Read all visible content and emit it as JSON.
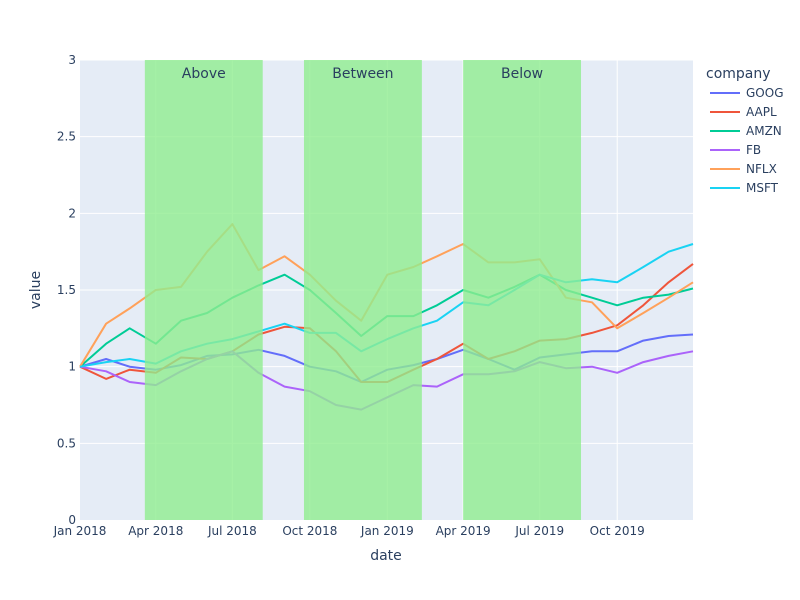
{
  "chart_data": {
    "type": "line",
    "xlabel": "date",
    "ylabel": "value",
    "ylim": [
      0,
      3
    ],
    "xlim": [
      "2018-01-01",
      "2019-12-30"
    ],
    "y_ticks": [
      0,
      0.5,
      1,
      1.5,
      2,
      2.5,
      3
    ],
    "y_tick_labels": [
      "0",
      "0.5",
      "1",
      "1.5",
      "2",
      "2.5",
      "3"
    ],
    "x_ticks": [
      "2018-01-01",
      "2018-04-01",
      "2018-07-01",
      "2018-10-01",
      "2019-01-01",
      "2019-04-01",
      "2019-07-01",
      "2019-10-01"
    ],
    "x_tick_labels": [
      "Jan 2018",
      "Apr 2018",
      "Jul 2018",
      "Oct 2018",
      "Jan 2019",
      "Apr 2019",
      "Jul 2019",
      "Oct 2019"
    ],
    "grid": true,
    "legend": {
      "title": "company",
      "placement": "right"
    },
    "bands": [
      {
        "label": "Above",
        "start": "2018-03-19",
        "end": "2018-08-06",
        "color": "#90ee90"
      },
      {
        "label": "Between",
        "start": "2018-09-24",
        "end": "2019-02-11",
        "color": "#90ee90"
      },
      {
        "label": "Below",
        "start": "2019-04-01",
        "end": "2019-08-19",
        "color": "#90ee90"
      }
    ],
    "series": [
      {
        "name": "GOOG",
        "color": "#636efa",
        "points": [
          [
            "2018-01-01",
            1.0
          ],
          [
            "2018-02-01",
            1.05
          ],
          [
            "2018-03-01",
            1.0
          ],
          [
            "2018-04-01",
            0.98
          ],
          [
            "2018-05-01",
            1.01
          ],
          [
            "2018-06-01",
            1.07
          ],
          [
            "2018-07-01",
            1.08
          ],
          [
            "2018-08-01",
            1.11
          ],
          [
            "2018-09-01",
            1.07
          ],
          [
            "2018-10-01",
            1.0
          ],
          [
            "2018-11-01",
            0.97
          ],
          [
            "2018-12-01",
            0.9
          ],
          [
            "2019-01-01",
            0.98
          ],
          [
            "2019-02-01",
            1.01
          ],
          [
            "2019-03-01",
            1.05
          ],
          [
            "2019-04-01",
            1.11
          ],
          [
            "2019-05-01",
            1.05
          ],
          [
            "2019-06-01",
            0.98
          ],
          [
            "2019-07-01",
            1.06
          ],
          [
            "2019-08-01",
            1.08
          ],
          [
            "2019-09-01",
            1.1
          ],
          [
            "2019-10-01",
            1.1
          ],
          [
            "2019-11-01",
            1.17
          ],
          [
            "2019-12-01",
            1.2
          ],
          [
            "2019-12-30",
            1.21
          ]
        ]
      },
      {
        "name": "AAPL",
        "color": "#ef553b",
        "points": [
          [
            "2018-01-01",
            1.0
          ],
          [
            "2018-02-01",
            0.92
          ],
          [
            "2018-03-01",
            0.98
          ],
          [
            "2018-04-01",
            0.96
          ],
          [
            "2018-05-01",
            1.06
          ],
          [
            "2018-06-01",
            1.05
          ],
          [
            "2018-07-01",
            1.1
          ],
          [
            "2018-08-01",
            1.21
          ],
          [
            "2018-09-01",
            1.26
          ],
          [
            "2018-10-01",
            1.25
          ],
          [
            "2018-11-01",
            1.1
          ],
          [
            "2018-12-01",
            0.9
          ],
          [
            "2019-01-01",
            0.9
          ],
          [
            "2019-02-01",
            0.98
          ],
          [
            "2019-03-01",
            1.05
          ],
          [
            "2019-04-01",
            1.15
          ],
          [
            "2019-05-01",
            1.05
          ],
          [
            "2019-06-01",
            1.1
          ],
          [
            "2019-07-01",
            1.17
          ],
          [
            "2019-08-01",
            1.18
          ],
          [
            "2019-09-01",
            1.22
          ],
          [
            "2019-10-01",
            1.27
          ],
          [
            "2019-11-01",
            1.4
          ],
          [
            "2019-12-01",
            1.55
          ],
          [
            "2019-12-30",
            1.67
          ]
        ]
      },
      {
        "name": "AMZN",
        "color": "#00cc96",
        "points": [
          [
            "2018-01-01",
            1.0
          ],
          [
            "2018-02-01",
            1.15
          ],
          [
            "2018-03-01",
            1.25
          ],
          [
            "2018-04-01",
            1.15
          ],
          [
            "2018-05-01",
            1.3
          ],
          [
            "2018-06-01",
            1.35
          ],
          [
            "2018-07-01",
            1.45
          ],
          [
            "2018-08-01",
            1.53
          ],
          [
            "2018-09-01",
            1.6
          ],
          [
            "2018-10-01",
            1.5
          ],
          [
            "2018-11-01",
            1.35
          ],
          [
            "2018-12-01",
            1.2
          ],
          [
            "2019-01-01",
            1.33
          ],
          [
            "2019-02-01",
            1.33
          ],
          [
            "2019-03-01",
            1.4
          ],
          [
            "2019-04-01",
            1.5
          ],
          [
            "2019-05-01",
            1.45
          ],
          [
            "2019-06-01",
            1.52
          ],
          [
            "2019-07-01",
            1.6
          ],
          [
            "2019-08-01",
            1.5
          ],
          [
            "2019-09-01",
            1.45
          ],
          [
            "2019-10-01",
            1.4
          ],
          [
            "2019-11-01",
            1.45
          ],
          [
            "2019-12-01",
            1.47
          ],
          [
            "2019-12-30",
            1.51
          ]
        ]
      },
      {
        "name": "FB",
        "color": "#ab63fa",
        "points": [
          [
            "2018-01-01",
            1.0
          ],
          [
            "2018-02-01",
            0.97
          ],
          [
            "2018-03-01",
            0.9
          ],
          [
            "2018-04-01",
            0.88
          ],
          [
            "2018-05-01",
            0.97
          ],
          [
            "2018-06-01",
            1.05
          ],
          [
            "2018-07-01",
            1.1
          ],
          [
            "2018-08-01",
            0.96
          ],
          [
            "2018-09-01",
            0.87
          ],
          [
            "2018-10-01",
            0.84
          ],
          [
            "2018-11-01",
            0.75
          ],
          [
            "2018-12-01",
            0.72
          ],
          [
            "2019-01-01",
            0.8
          ],
          [
            "2019-02-01",
            0.88
          ],
          [
            "2019-03-01",
            0.87
          ],
          [
            "2019-04-01",
            0.95
          ],
          [
            "2019-05-01",
            0.95
          ],
          [
            "2019-06-01",
            0.97
          ],
          [
            "2019-07-01",
            1.03
          ],
          [
            "2019-08-01",
            0.99
          ],
          [
            "2019-09-01",
            1.0
          ],
          [
            "2019-10-01",
            0.96
          ],
          [
            "2019-11-01",
            1.03
          ],
          [
            "2019-12-01",
            1.07
          ],
          [
            "2019-12-30",
            1.1
          ]
        ]
      },
      {
        "name": "NFLX",
        "color": "#ffa15a",
        "points": [
          [
            "2018-01-01",
            1.0
          ],
          [
            "2018-02-01",
            1.28
          ],
          [
            "2018-03-01",
            1.38
          ],
          [
            "2018-04-01",
            1.5
          ],
          [
            "2018-05-01",
            1.52
          ],
          [
            "2018-06-01",
            1.75
          ],
          [
            "2018-07-01",
            1.93
          ],
          [
            "2018-08-01",
            1.63
          ],
          [
            "2018-09-01",
            1.72
          ],
          [
            "2018-10-01",
            1.6
          ],
          [
            "2018-11-01",
            1.43
          ],
          [
            "2018-12-01",
            1.3
          ],
          [
            "2019-01-01",
            1.6
          ],
          [
            "2019-02-01",
            1.65
          ],
          [
            "2019-03-01",
            1.72
          ],
          [
            "2019-04-01",
            1.8
          ],
          [
            "2019-05-01",
            1.68
          ],
          [
            "2019-06-01",
            1.68
          ],
          [
            "2019-07-01",
            1.7
          ],
          [
            "2019-08-01",
            1.45
          ],
          [
            "2019-09-01",
            1.42
          ],
          [
            "2019-10-01",
            1.25
          ],
          [
            "2019-11-01",
            1.35
          ],
          [
            "2019-12-01",
            1.45
          ],
          [
            "2019-12-30",
            1.55
          ]
        ]
      },
      {
        "name": "MSFT",
        "color": "#19d3f3",
        "points": [
          [
            "2018-01-01",
            1.0
          ],
          [
            "2018-02-01",
            1.03
          ],
          [
            "2018-03-01",
            1.05
          ],
          [
            "2018-04-01",
            1.02
          ],
          [
            "2018-05-01",
            1.1
          ],
          [
            "2018-06-01",
            1.15
          ],
          [
            "2018-07-01",
            1.18
          ],
          [
            "2018-08-01",
            1.23
          ],
          [
            "2018-09-01",
            1.28
          ],
          [
            "2018-10-01",
            1.22
          ],
          [
            "2018-11-01",
            1.22
          ],
          [
            "2018-12-01",
            1.1
          ],
          [
            "2019-01-01",
            1.18
          ],
          [
            "2019-02-01",
            1.25
          ],
          [
            "2019-03-01",
            1.3
          ],
          [
            "2019-04-01",
            1.42
          ],
          [
            "2019-05-01",
            1.4
          ],
          [
            "2019-06-01",
            1.5
          ],
          [
            "2019-07-01",
            1.6
          ],
          [
            "2019-08-01",
            1.55
          ],
          [
            "2019-09-01",
            1.57
          ],
          [
            "2019-10-01",
            1.55
          ],
          [
            "2019-11-01",
            1.65
          ],
          [
            "2019-12-01",
            1.75
          ],
          [
            "2019-12-30",
            1.8
          ]
        ]
      }
    ]
  }
}
